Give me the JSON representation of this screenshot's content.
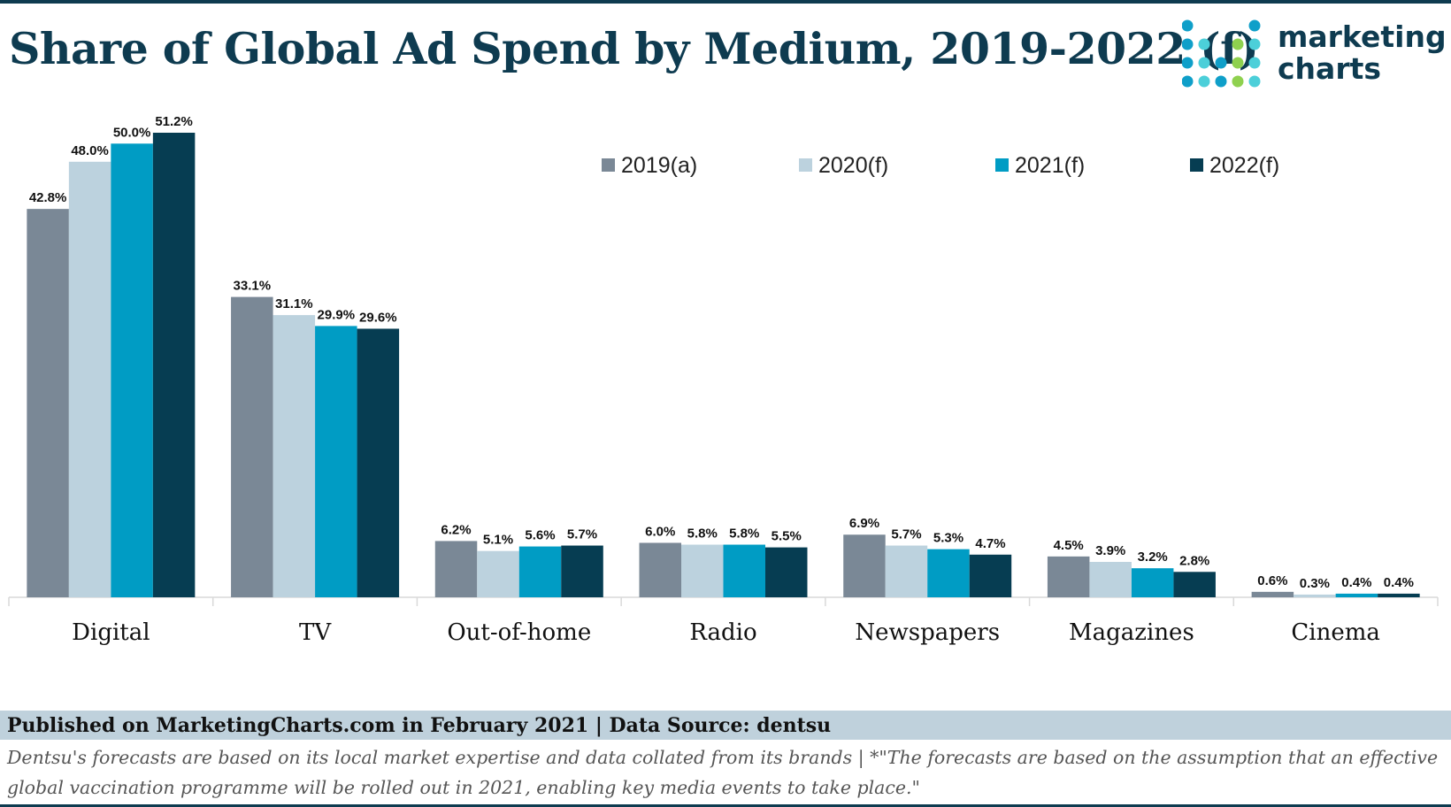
{
  "header": {
    "title": "Share of Global Ad Spend by Medium, 2019-2022 (f)",
    "logo_line1": "marketing",
    "logo_line2": "charts"
  },
  "colors": {
    "title": "#0e3b50",
    "series": [
      "#7a8896",
      "#bcd2de",
      "#009cc4",
      "#063d52"
    ],
    "footer_bg": "#bfd1dc",
    "logo_dots": [
      "#0f9fc9",
      "#4ccfd9",
      "#8fd14f"
    ]
  },
  "chart_data": {
    "type": "bar",
    "title": "Share of Global Ad Spend by Medium, 2019-2022 (f)",
    "categories": [
      "Digital",
      "TV",
      "Out-of-home",
      "Radio",
      "Newspapers",
      "Magazines",
      "Cinema"
    ],
    "series": [
      {
        "name": "2019(a)",
        "values": [
          42.8,
          33.1,
          6.2,
          6.0,
          6.9,
          4.5,
          0.6
        ],
        "labels": [
          "42.8%",
          "33.1%",
          "6.2%",
          "6.0%",
          "6.9%",
          "4.5%",
          "0.6%"
        ]
      },
      {
        "name": "2020(f)",
        "values": [
          48.0,
          31.1,
          5.1,
          5.8,
          5.7,
          3.9,
          0.3
        ],
        "labels": [
          "48.0%",
          "31.1%",
          "5.1%",
          "5.8%",
          "5.7%",
          "3.9%",
          "0.3%"
        ]
      },
      {
        "name": "2021(f)",
        "values": [
          50.0,
          29.9,
          5.6,
          5.8,
          5.3,
          3.2,
          0.4
        ],
        "labels": [
          "50.0%",
          "29.9%",
          "5.6%",
          "5.8%",
          "5.3%",
          "3.2%",
          "0.4%"
        ]
      },
      {
        "name": "2022(f)",
        "values": [
          51.2,
          29.6,
          5.7,
          5.5,
          4.7,
          2.8,
          0.4
        ],
        "labels": [
          "51.2%",
          "29.6%",
          "5.7%",
          "5.5%",
          "4.7%",
          "2.8%",
          "0.4%"
        ]
      }
    ],
    "xlabel": "",
    "ylabel": "",
    "ylim": [
      0,
      51.2
    ],
    "grid": false,
    "legend_position": "top-right"
  },
  "footer": {
    "published": "Published on MarketingCharts.com in February 2021 | Data Source: dentsu",
    "note": "Dentsu's forecasts are based on its local market expertise and data collated from its brands | *\"The forecasts are based on the assumption that an effective global vaccination programme will be rolled out in 2021, enabling key media events to take place.\""
  }
}
